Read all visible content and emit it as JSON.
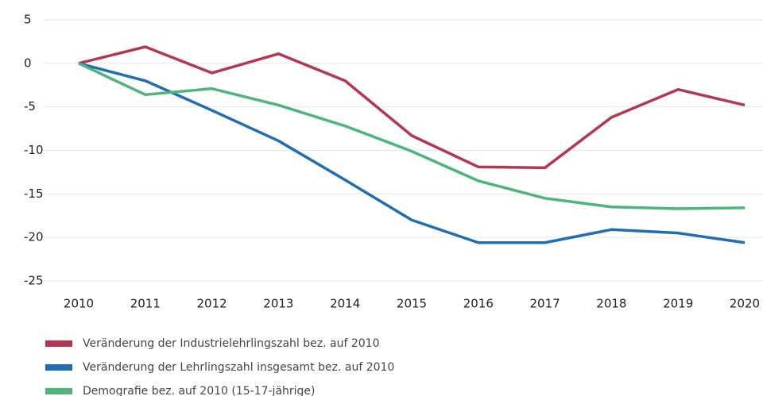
{
  "chart_data": {
    "type": "line",
    "categories": [
      "2010",
      "2011",
      "2012",
      "2013",
      "2014",
      "2015",
      "2016",
      "2017",
      "2018",
      "2019",
      "2020"
    ],
    "series": [
      {
        "name": "Veränderung der Industrielehrlingszahl bez. auf 2010",
        "color": "#b5364f",
        "values": [
          0,
          1.9,
          -1.1,
          1.1,
          -2.0,
          -8.3,
          -11.9,
          -12.0,
          -6.2,
          -3.0,
          -4.8
        ]
      },
      {
        "name": "Veränderung der Lehrlingszahl insgesamt bez. auf 2010",
        "color": "#1f6db5",
        "values": [
          0,
          -2.0,
          -5.4,
          -8.9,
          -13.4,
          -18.0,
          -20.6,
          -20.6,
          -19.1,
          -19.5,
          -20.6
        ]
      },
      {
        "name": "Demografie bez. auf 2010 (15-17-jährige)",
        "color": "#4bb57a",
        "values": [
          0,
          -3.6,
          -2.9,
          -4.8,
          -7.2,
          -10.1,
          -13.5,
          -15.5,
          -16.5,
          -16.7,
          -16.6
        ]
      }
    ],
    "ylim": [
      -25,
      5
    ],
    "yticks": [
      5,
      0,
      -5,
      -10,
      -15,
      -20,
      -25
    ],
    "grid": true
  }
}
